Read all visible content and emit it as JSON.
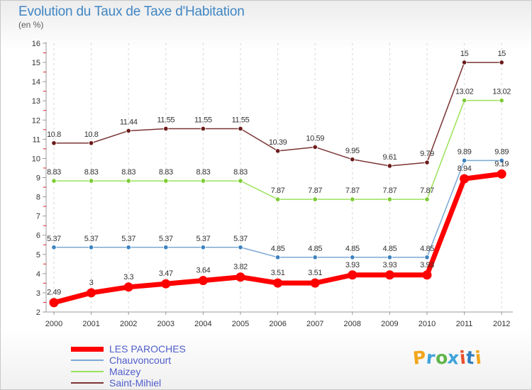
{
  "header": {
    "title": "Evolution du Taux de Taxe d'Habitation",
    "subtitle": "(en %)"
  },
  "logo": {
    "text": "Proxiti",
    "letter_colors": [
      "#f2a61c",
      "#3fa3da",
      "#5fb54a",
      "#3fa3da",
      "#e9502a",
      "#2f7fc1",
      "#f2a61c"
    ]
  },
  "legend": [
    {
      "label": "LES PAROCHES",
      "color": "#ff0000",
      "text_color": "#4f5ec9"
    },
    {
      "label": "Chauvoncourt",
      "color": "#7aa8d4",
      "text_color": "#4f5ec9"
    },
    {
      "label": "Maizey",
      "color": "#9be25a",
      "text_color": "#4f5ec9"
    },
    {
      "label": "Saint-Mihiel",
      "color": "#7c3434",
      "text_color": "#4f5ec9"
    }
  ],
  "chart_data": {
    "type": "line",
    "title": "Evolution du Taux de Taxe d'Habitation",
    "subtitle": "(en %)",
    "xlabel": "",
    "ylabel": "",
    "x": [
      "2000",
      "2001",
      "2002",
      "2003",
      "2004",
      "2005",
      "2006",
      "2007",
      "2008",
      "2009",
      "2010",
      "2011",
      "2012"
    ],
    "ylim": [
      2,
      16
    ],
    "yticks": [
      "2",
      "3",
      "4",
      "5",
      "6",
      "7",
      "8",
      "9",
      "10",
      "11",
      "12",
      "13",
      "14",
      "15",
      "16"
    ],
    "grid": "vertical dashed",
    "legend_position": "bottom-left",
    "series": [
      {
        "name": "Saint-Mihiel",
        "color": "#7c3434",
        "marker": "#6b1a1a",
        "values": [
          10.8,
          10.8,
          11.44,
          11.55,
          11.55,
          11.55,
          10.39,
          10.59,
          9.95,
          9.61,
          9.79,
          15,
          15
        ],
        "labels": [
          "10.8",
          "10.8",
          "11.44",
          "11.55",
          "11.55",
          "11.55",
          "10.39",
          "10.59",
          "9.95",
          "9.61",
          "9.79",
          "15",
          "15"
        ]
      },
      {
        "name": "Maizey",
        "color": "#9be25a",
        "marker": "#7ccc33",
        "values": [
          8.83,
          8.83,
          8.83,
          8.83,
          8.83,
          8.83,
          7.87,
          7.87,
          7.87,
          7.87,
          7.87,
          13.02,
          13.02
        ],
        "labels": [
          "8.83",
          "8.83",
          "8.83",
          "8.83",
          "8.83",
          "8.83",
          "7.87",
          "7.87",
          "7.87",
          "7.87",
          "7.87",
          "13.02",
          "13.02"
        ]
      },
      {
        "name": "Chauvoncourt",
        "color": "#7aa8d4",
        "marker": "#3c82c0",
        "values": [
          5.37,
          5.37,
          5.37,
          5.37,
          5.37,
          5.37,
          4.85,
          4.85,
          4.85,
          4.85,
          4.85,
          9.89,
          9.89
        ],
        "labels": [
          "5.37",
          "5.37",
          "5.37",
          "5.37",
          "5.37",
          "5.37",
          "4.85",
          "4.85",
          "4.85",
          "4.85",
          "4.85",
          "9.89",
          "9.89"
        ]
      },
      {
        "name": "LES PAROCHES",
        "color": "#ff0000",
        "marker": "#ff0000",
        "values": [
          2.49,
          3,
          3.3,
          3.47,
          3.64,
          3.82,
          3.51,
          3.51,
          3.93,
          3.93,
          3.93,
          8.94,
          9.19
        ],
        "labels": [
          "2.49",
          "3",
          "3.3",
          "3.47",
          "3.64",
          "3.82",
          "3.51",
          "3.51",
          "3.93",
          "3.93",
          "3.93",
          "8.94",
          "9.19"
        ]
      }
    ]
  }
}
